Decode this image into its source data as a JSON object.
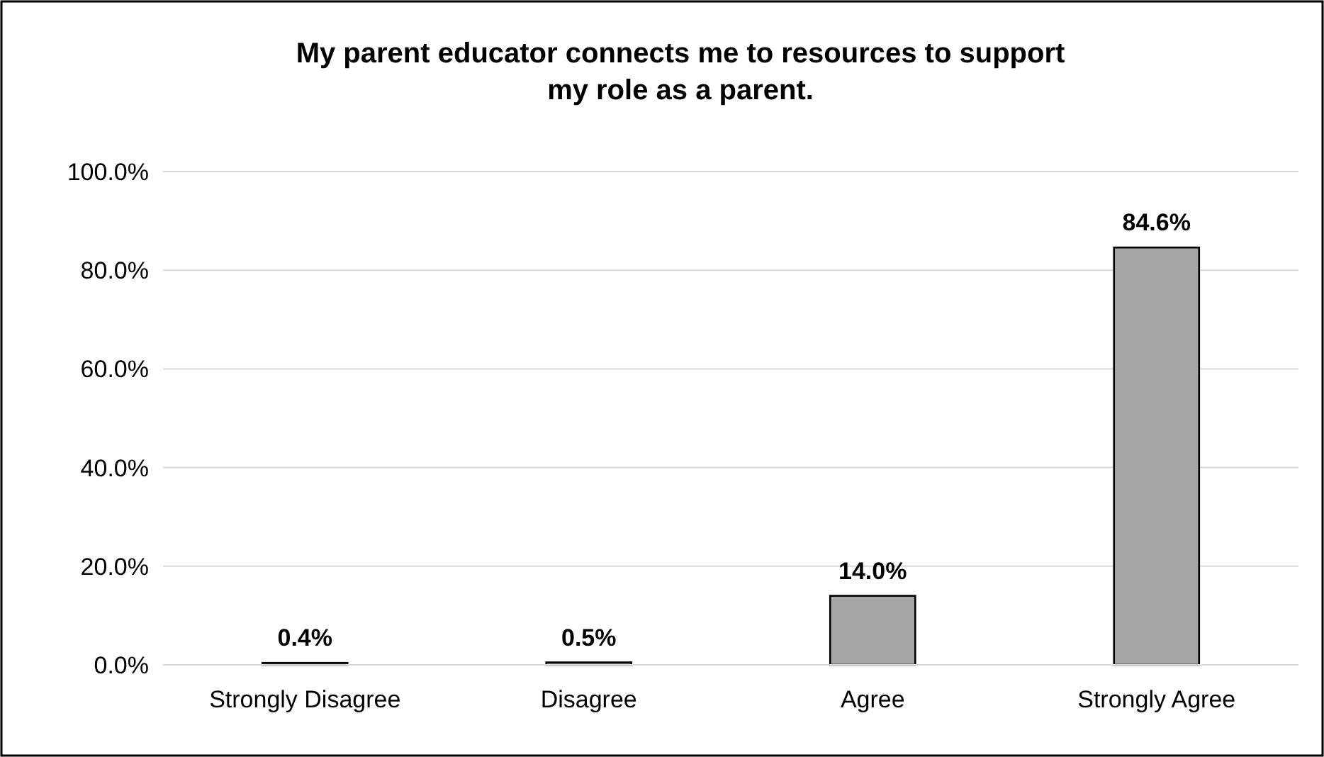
{
  "chart_data": {
    "type": "bar",
    "title": "My parent educator connects me to resources to support\nmy role as a parent.",
    "categories": [
      "Strongly Disagree",
      "Disagree",
      "Agree",
      "Strongly Agree"
    ],
    "values": [
      0.4,
      0.5,
      14.0,
      84.6
    ],
    "value_labels": [
      "0.4%",
      "0.5%",
      "14.0%",
      "84.6%"
    ],
    "color": "#a6a6a6",
    "ylim": [
      0,
      100
    ],
    "yticks": [
      {
        "value": 0,
        "label": "0.0%"
      },
      {
        "value": 20,
        "label": "20.0%"
      },
      {
        "value": 40,
        "label": "40.0%"
      },
      {
        "value": 60,
        "label": "60.0%"
      },
      {
        "value": 80,
        "label": "80.0%"
      },
      {
        "value": 100,
        "label": "100.0%"
      }
    ],
    "grid": "y"
  }
}
